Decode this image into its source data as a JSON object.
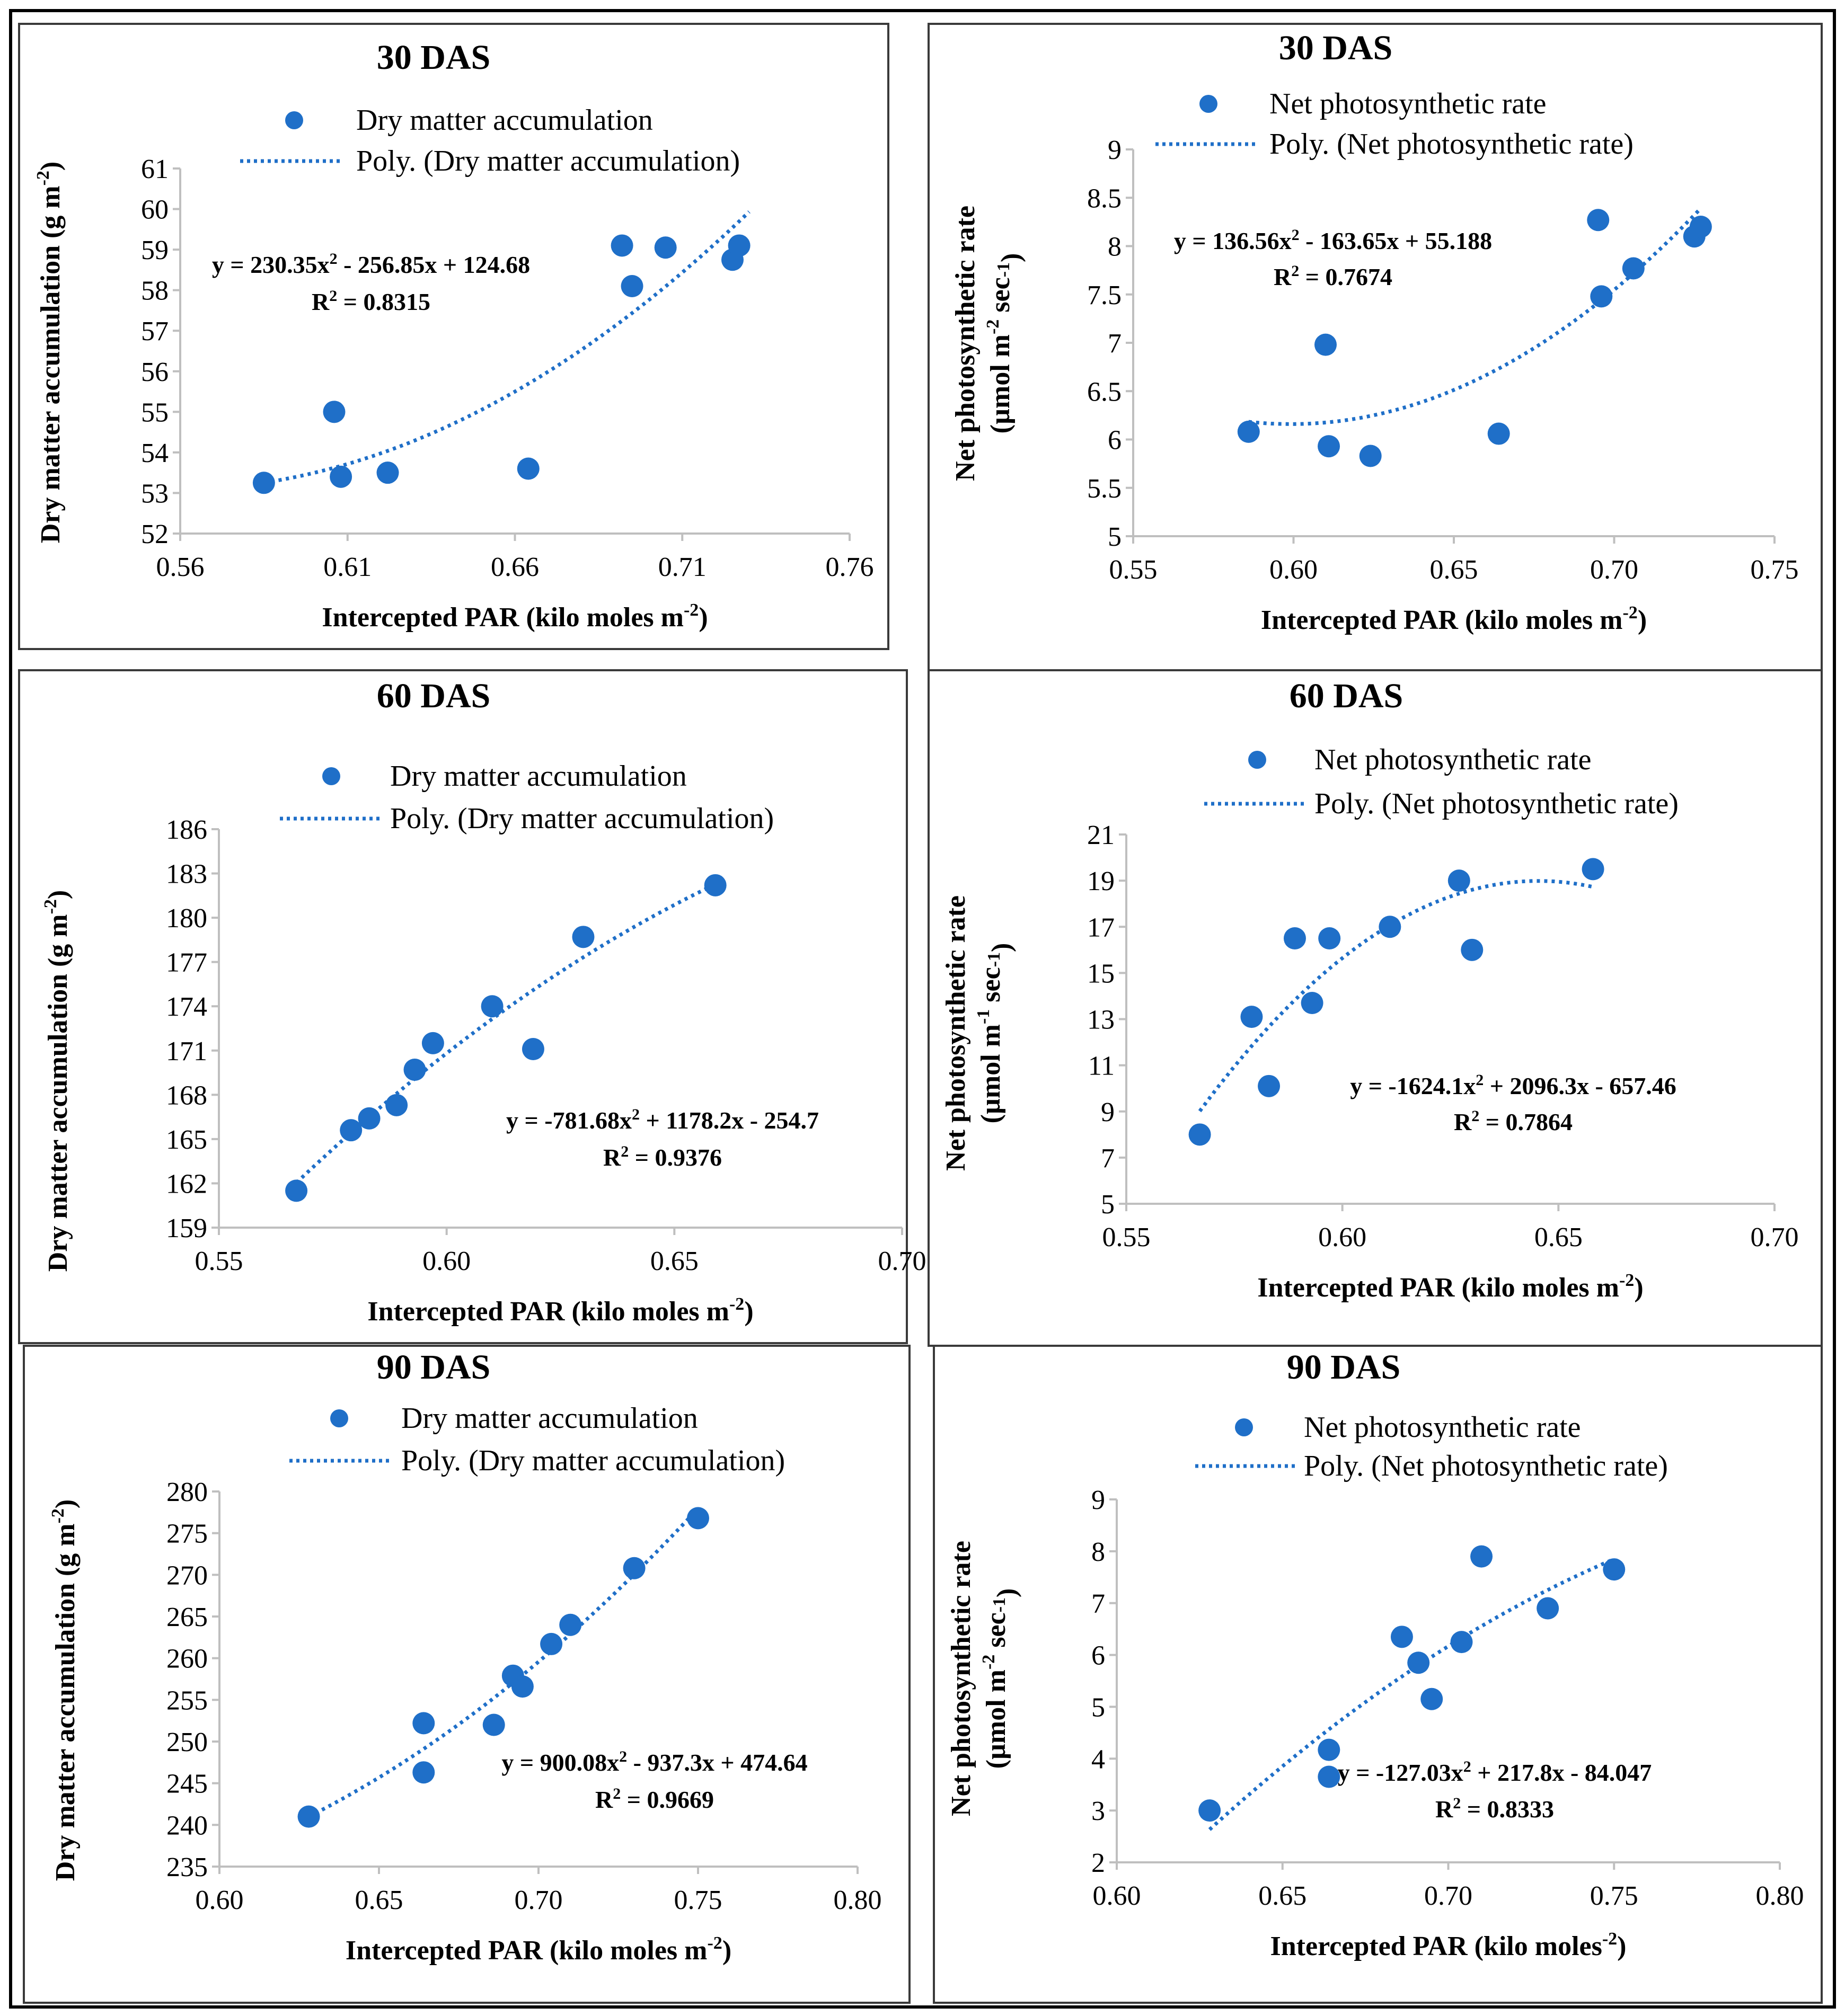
{
  "colors": {
    "marker": "#1f6fc8",
    "trend": "#1f6fc8",
    "axis": "#bfbfbf",
    "frame": "#3a3a3a"
  },
  "chart_data": [
    {
      "type": "scatter",
      "title": "30 DAS",
      "xlabel": "Intercepted PAR (kilo moles m-2)",
      "ylabel": "Dry matter accumulation (g m-2)",
      "xlim": [
        0.56,
        0.76
      ],
      "ylim": [
        52,
        61
      ],
      "xticks": [
        "0.56",
        "0.61",
        "0.66",
        "0.71",
        "0.76"
      ],
      "yticks": [
        "52",
        "53",
        "54",
        "55",
        "56",
        "57",
        "58",
        "59",
        "60",
        "61"
      ],
      "legend": [
        "Dry matter accumulation",
        "Poly. (Dry matter accumulation)"
      ],
      "equation": "y = 230.35x2 - 256.85x + 124.68",
      "r2": "R2 = 0.8315",
      "coef": [
        230.35,
        -256.85,
        124.68
      ],
      "trend_range": [
        0.585,
        0.73
      ],
      "x": [
        0.585,
        0.606,
        0.608,
        0.622,
        0.664,
        0.692,
        0.695,
        0.705,
        0.725,
        0.727
      ],
      "y": [
        53.25,
        55.0,
        53.4,
        53.5,
        53.6,
        59.1,
        58.1,
        59.05,
        58.75,
        59.1
      ]
    },
    {
      "type": "scatter",
      "title": "30 DAS",
      "xlabel": "Intercepted PAR (kilo moles m-2)",
      "ylabel": "Net photosynthetic rate (µmol m-2 sec-1)",
      "xlim": [
        0.55,
        0.75
      ],
      "ylim": [
        5,
        9
      ],
      "xticks": [
        "0.55",
        "0.60",
        "0.65",
        "0.70",
        "0.75"
      ],
      "yticks": [
        "5",
        "5.5",
        "6",
        "6.5",
        "7",
        "7.5",
        "8",
        "8.5",
        "9"
      ],
      "legend": [
        "Net photosynthetic rate",
        "Poly. (Net photosynthetic rate)"
      ],
      "equation": "y = 136.56x2 - 163.65x + 55.188",
      "r2": "R2 = 0.7674",
      "coef": [
        136.56,
        -163.65,
        55.188
      ],
      "trend_range": [
        0.586,
        0.727
      ],
      "x": [
        0.586,
        0.61,
        0.611,
        0.624,
        0.664,
        0.695,
        0.696,
        0.706,
        0.725,
        0.727
      ],
      "y": [
        6.08,
        6.98,
        5.93,
        5.83,
        6.06,
        8.27,
        7.48,
        7.77,
        8.1,
        8.2
      ]
    },
    {
      "type": "scatter",
      "title": "60 DAS",
      "xlabel": "Intercepted PAR (kilo moles m-2)",
      "ylabel": "Dry matter accumulation (g m-2)",
      "xlim": [
        0.55,
        0.7
      ],
      "ylim": [
        159,
        186
      ],
      "xticks": [
        "0.55",
        "0.60",
        "0.65",
        "0.70"
      ],
      "yticks": [
        "159",
        "162",
        "165",
        "168",
        "171",
        "174",
        "177",
        "180",
        "183",
        "186"
      ],
      "legend": [
        "Dry matter accumulation",
        "Poly. (Dry matter accumulation)"
      ],
      "equation": "y = -781.68x2 + 1178.2x - 254.7",
      "r2": "R2 = 0.9376",
      "coef": [
        -781.68,
        1178.2,
        -254.7
      ],
      "trend_range": [
        0.567,
        0.659
      ],
      "x": [
        0.567,
        0.579,
        0.583,
        0.589,
        0.593,
        0.597,
        0.61,
        0.619,
        0.63,
        0.659
      ],
      "y": [
        161.5,
        165.6,
        166.4,
        167.3,
        169.7,
        171.5,
        174.0,
        171.1,
        178.7,
        182.2
      ]
    },
    {
      "type": "scatter",
      "title": "60 DAS",
      "xlabel": "Intercepted PAR (kilo moles m-2)",
      "ylabel": "Net photosynthetic rate (µmol m-1 sec-1)",
      "xlim": [
        0.55,
        0.7
      ],
      "ylim": [
        5,
        21
      ],
      "xticks": [
        "0.55",
        "0.60",
        "0.65",
        "0.70"
      ],
      "yticks": [
        "5",
        "7",
        "9",
        "11",
        "13",
        "15",
        "17",
        "19",
        "21"
      ],
      "legend": [
        "Net photosynthetic rate",
        "Poly. (Net photosynthetic rate)"
      ],
      "equation": "y = -1624.1x2 + 2096.3x - 657.46",
      "r2": "R2 = 0.7864",
      "coef": [
        -1624.1,
        2096.3,
        -657.46
      ],
      "trend_range": [
        0.567,
        0.658
      ],
      "x": [
        0.567,
        0.579,
        0.583,
        0.589,
        0.593,
        0.597,
        0.611,
        0.627,
        0.63,
        0.658
      ],
      "y": [
        8.0,
        13.1,
        10.1,
        16.5,
        13.7,
        16.5,
        17.0,
        19.0,
        16.0,
        19.5
      ]
    },
    {
      "type": "scatter",
      "title": "90 DAS",
      "xlabel": "Intercepted PAR (kilo moles m-2)",
      "ylabel": "Dry matter accumulation (g m-2)",
      "xlim": [
        0.6,
        0.8
      ],
      "ylim": [
        235,
        280
      ],
      "xticks": [
        "0.60",
        "0.65",
        "0.70",
        "0.75",
        "0.80"
      ],
      "yticks": [
        "235",
        "240",
        "245",
        "250",
        "255",
        "260",
        "265",
        "270",
        "275",
        "280"
      ],
      "legend": [
        "Dry matter accumulation",
        "Poly. (Dry matter accumulation)"
      ],
      "equation": "y = 900.08x2 - 937.3x + 474.64",
      "r2": "R2 = 0.9669",
      "coef": [
        900.08,
        -937.3,
        474.64
      ],
      "trend_range": [
        0.628,
        0.75
      ],
      "x": [
        0.628,
        0.664,
        0.664,
        0.686,
        0.692,
        0.695,
        0.704,
        0.71,
        0.73,
        0.75
      ],
      "y": [
        241.0,
        252.2,
        246.3,
        252.0,
        257.9,
        256.6,
        261.7,
        264.0,
        270.8,
        276.8
      ]
    },
    {
      "type": "scatter",
      "title": "90 DAS",
      "xlabel": "Intercepted PAR (kilo moles-2)",
      "ylabel": "Net photosynthetic rate (µmol m-2 sec-1)",
      "xlim": [
        0.6,
        0.8
      ],
      "ylim": [
        2,
        9
      ],
      "xticks": [
        "0.60",
        "0.65",
        "0.70",
        "0.75",
        "0.80"
      ],
      "yticks": [
        "2",
        "3",
        "4",
        "5",
        "6",
        "7",
        "8",
        "9"
      ],
      "legend": [
        "Net photosynthetic rate",
        "Poly. (Net photosynthetic rate)"
      ],
      "equation": "y = -127.03x2 + 217.8x - 84.047",
      "r2": "R2 = 0.8333",
      "coef": [
        -127.03,
        217.8,
        -84.047
      ],
      "trend_range": [
        0.628,
        0.75
      ],
      "x": [
        0.628,
        0.664,
        0.664,
        0.686,
        0.691,
        0.695,
        0.704,
        0.71,
        0.73,
        0.75
      ],
      "y": [
        3.0,
        3.65,
        4.17,
        6.35,
        5.85,
        5.15,
        6.25,
        7.9,
        6.9,
        7.65
      ]
    }
  ]
}
